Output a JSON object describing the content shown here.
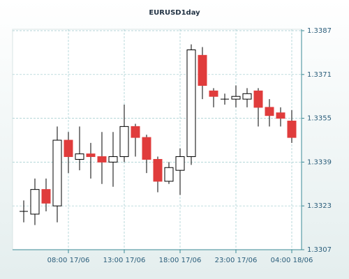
{
  "chart_data": {
    "type": "candlestick",
    "title": "EURUSD1day",
    "x": [
      "04:00 17/06",
      "05:00 17/06",
      "06:00 17/06",
      "07:00 17/06",
      "08:00 17/06",
      "09:00 17/06",
      "10:00 17/06",
      "11:00 17/06",
      "12:00 17/06",
      "13:00 17/06",
      "14:00 17/06",
      "15:00 17/06",
      "16:00 17/06",
      "17:00 17/06",
      "18:00 17/06",
      "19:00 17/06",
      "20:00 17/06",
      "21:00 17/06",
      "22:00 17/06",
      "23:00 17/06",
      "00:00 18/06",
      "01:00 18/06",
      "02:00 18/06",
      "03:00 18/06",
      "04:00 18/06"
    ],
    "open": [
      1.3321,
      1.332,
      1.3329,
      1.3323,
      1.3347,
      1.334,
      1.3342,
      1.3341,
      1.3339,
      1.3341,
      1.3352,
      1.3348,
      1.334,
      1.3332,
      1.3336,
      1.3341,
      1.3378,
      1.3365,
      1.3362,
      1.3362,
      1.3362,
      1.3365,
      1.3359,
      1.3357,
      1.3354
    ],
    "high": [
      1.3325,
      1.3333,
      1.3333,
      1.3352,
      1.335,
      1.3352,
      1.3346,
      1.335,
      1.335,
      1.336,
      1.3353,
      1.3349,
      1.3341,
      1.3339,
      1.3344,
      1.3382,
      1.3381,
      1.3366,
      1.3364,
      1.3367,
      1.3366,
      1.3366,
      1.3362,
      1.3359,
      1.3358
    ],
    "low": [
      1.3317,
      1.3316,
      1.3321,
      1.3317,
      1.3335,
      1.3336,
      1.3333,
      1.3331,
      1.333,
      1.3339,
      1.3341,
      1.3335,
      1.3328,
      1.3331,
      1.3327,
      1.3338,
      1.3362,
      1.3359,
      1.336,
      1.3359,
      1.3359,
      1.3352,
      1.3352,
      1.3352,
      1.3346
    ],
    "close": [
      1.3321,
      1.3329,
      1.3324,
      1.3347,
      1.3341,
      1.3342,
      1.3341,
      1.3339,
      1.3341,
      1.3352,
      1.3348,
      1.334,
      1.3332,
      1.3337,
      1.3341,
      1.338,
      1.3367,
      1.3363,
      1.3362,
      1.3363,
      1.3364,
      1.3359,
      1.3356,
      1.3355,
      1.3348
    ],
    "up_color": "#ffffff",
    "down_color": "#e03c3c",
    "ylim": [
      1.3307,
      1.3387
    ],
    "yticks": [
      1.3307,
      1.3323,
      1.3339,
      1.3355,
      1.3371,
      1.3387
    ],
    "xticks": [
      "08:00 17/06",
      "13:00 17/06",
      "18:00 17/06",
      "23:00 17/06",
      "04:00 18/06"
    ],
    "grid": true
  }
}
